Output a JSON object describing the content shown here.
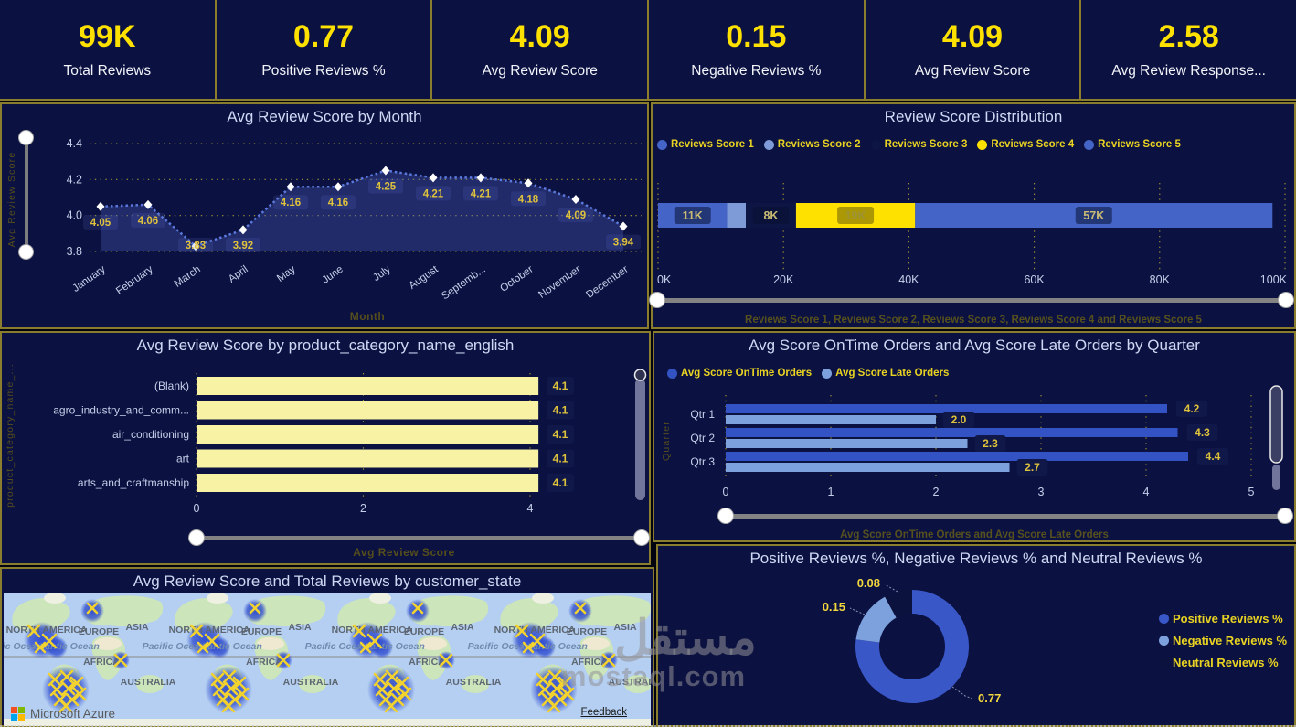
{
  "kpis": [
    {
      "value": "99K",
      "label": "Total Reviews"
    },
    {
      "value": "0.77",
      "label": "Positive Reviews %"
    },
    {
      "value": "4.09",
      "label": "Avg Review Score"
    },
    {
      "value": "0.15",
      "label": "Negative Reviews %"
    },
    {
      "value": "4.09",
      "label": "Avg Review Score"
    },
    {
      "value": "2.58",
      "label": "Avg Review Response..."
    }
  ],
  "chart_data": [
    {
      "id": "monthly_score",
      "type": "area",
      "title": "Avg Review Score by Month",
      "xlabel": "Month",
      "ylabel": "Avg Review Score",
      "categories": [
        "January",
        "February",
        "March",
        "April",
        "May",
        "June",
        "July",
        "August",
        "Septemb...",
        "October",
        "November",
        "December"
      ],
      "values": [
        4.05,
        4.06,
        3.83,
        3.92,
        4.16,
        4.16,
        4.25,
        4.21,
        4.21,
        4.18,
        4.09,
        3.94
      ],
      "yticks": [
        "4.4",
        "4.2",
        "4.0",
        "3.8"
      ],
      "ylim": [
        3.8,
        4.4
      ],
      "grid": "dotted",
      "line_color": "#5b79dd",
      "fill_color": "rgba(80,100,195,0.32)",
      "marker": "white-diamond",
      "legend_position": "none"
    },
    {
      "id": "score_distribution",
      "type": "stacked-bar",
      "title": "Review Score Distribution",
      "series": [
        {
          "name": "Reviews Score 1",
          "value": 11,
          "label": "11K",
          "color": "#4464c8"
        },
        {
          "name": "Reviews Score 2",
          "value": 3,
          "label": "",
          "color": "#7e9bd8"
        },
        {
          "name": "Reviews Score 3",
          "value": 8,
          "label": "8K",
          "color": "#0d1545"
        },
        {
          "name": "Reviews Score 4",
          "value": 19,
          "label": "19K",
          "color": "#ffe100"
        },
        {
          "name": "Reviews Score 5",
          "value": 57,
          "label": "57K",
          "color": "#4464c8"
        }
      ],
      "xticks": [
        "0K",
        "20K",
        "40K",
        "60K",
        "80K",
        "100K"
      ],
      "xlim": [
        0,
        100
      ],
      "axis_note": "Reviews Score 1, Reviews Score 2, Reviews Score 3, Reviews Score 4 and Reviews Score 5",
      "legend_position": "top"
    },
    {
      "id": "category_score",
      "type": "bar",
      "title": "Avg Review Score by product_category_name_english",
      "xlabel": "Avg Review Score",
      "ylabel": "product_category_name_...",
      "categories": [
        "(Blank)",
        "agro_industry_and_comm...",
        "air_conditioning",
        "art",
        "arts_and_craftmanship"
      ],
      "values": [
        4.1,
        4.1,
        4.1,
        4.1,
        4.1
      ],
      "value_labels": [
        "4.1",
        "4.1",
        "4.1",
        "4.1",
        "4.1"
      ],
      "xticks": [
        "0",
        "2",
        "4"
      ],
      "xlim": [
        0,
        5.4
      ],
      "bar_color": "#f8f3a4",
      "legend_position": "none"
    },
    {
      "id": "quarter_scores",
      "type": "bar",
      "title": "Avg Score OnTime Orders and Avg Score Late Orders by Quarter",
      "ylabel": "Quarter",
      "axis_note": "Avg Score OnTime Orders and Avg Score Late Orders",
      "categories": [
        "Qtr 1",
        "Qtr 2",
        "Qtr 3"
      ],
      "series": [
        {
          "name": "Avg Score OnTime Orders",
          "values": [
            4.2,
            4.3,
            4.4
          ],
          "labels": [
            "4.2",
            "4.3",
            "4.4"
          ],
          "color": "#3353c5"
        },
        {
          "name": "Avg Score Late Orders",
          "values": [
            2.0,
            2.3,
            2.7
          ],
          "labels": [
            "2.0",
            "2.3",
            "2.7"
          ],
          "color": "#7da1dc"
        }
      ],
      "xticks": [
        "0",
        "1",
        "2",
        "3",
        "4",
        "5"
      ],
      "xlim": [
        0,
        5.4
      ],
      "legend_position": "top"
    },
    {
      "id": "sentiment_donut",
      "type": "pie",
      "title": "Positive Reviews %, Negative Reviews % and Neutral Reviews %",
      "donut": true,
      "slices": [
        {
          "name": "Positive Reviews %",
          "value": 0.77,
          "label": "0.77",
          "color": "#3a57c8"
        },
        {
          "name": "Negative Reviews %",
          "value": 0.15,
          "label": "0.15",
          "color": "#7da1dc"
        },
        {
          "name": "Neutral Reviews %",
          "value": 0.08,
          "label": "0.08",
          "color": "#0a123d"
        }
      ],
      "legend_position": "right"
    },
    {
      "id": "world_map",
      "type": "map",
      "title": "Avg Review Score and Total Reviews by customer_state",
      "continent_labels": [
        "NORTH AMERICA",
        "EUROPE",
        "ASIA",
        "AFRICA",
        "AUSTRALIA"
      ],
      "ocean_labels": [
        "Pacific Ocean",
        "Atlantic Ocean"
      ],
      "marker": "yellow-x-cluster",
      "attribution": "Microsoft Azure",
      "feedback_label": "Feedback"
    }
  ],
  "watermark": {
    "arabic": "مستقل",
    "latin": "mostaql.com"
  }
}
